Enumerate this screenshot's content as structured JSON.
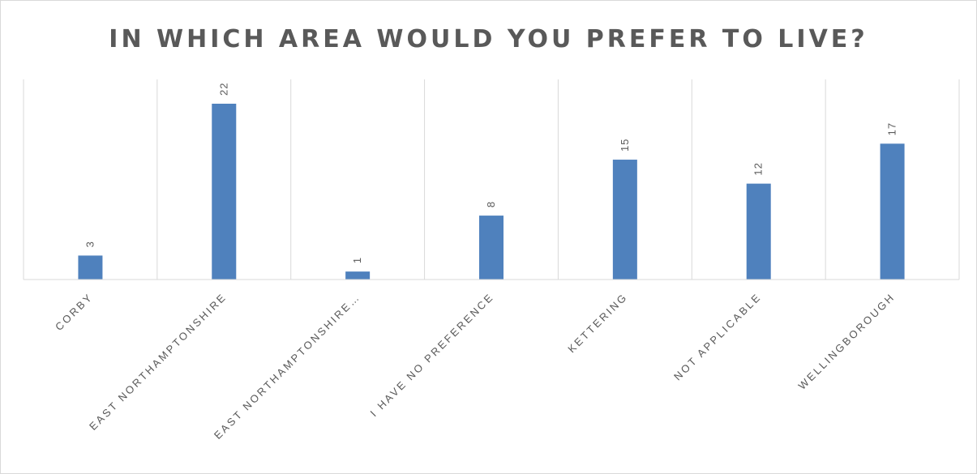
{
  "chart_data": {
    "type": "bar",
    "title": "IN WHICH AREA WOULD YOU PREFER TO LIVE?",
    "categories": [
      "CORBY",
      "EAST NORTHAMPTONSHIRE",
      "EAST NORTHAMPTONSHIRE…",
      "I HAVE NO PREFERENCE",
      "KETTERING",
      "NOT APPLICABLE",
      "WELLINGBOROUGH"
    ],
    "values": [
      3,
      22,
      1,
      8,
      15,
      12,
      17
    ],
    "data_labels": [
      "3",
      "22",
      "1",
      "8",
      "15",
      "12",
      "17"
    ],
    "xlabel": "",
    "ylabel": "",
    "ylim": [
      0,
      24
    ],
    "grid": "vertical category separators",
    "legend": "none",
    "bar_color": "#4f81bd",
    "grid_color": "#d9d9d9",
    "text_color": "#595959"
  }
}
